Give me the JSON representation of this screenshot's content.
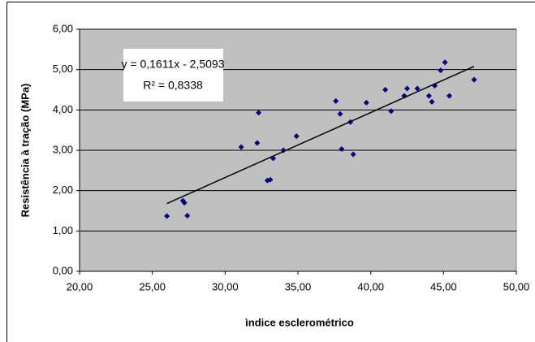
{
  "chart_data": {
    "type": "scatter",
    "x_label": "ìndice esclerométrico",
    "y_label": "Resistência à tração (MPa)",
    "annotations": [
      "y = 0,1611x - 2,5093",
      "R² = 0,8338"
    ],
    "plot_background": "#c0c0c0",
    "grid": true,
    "xlim": [
      20,
      50
    ],
    "xticks": [
      {
        "value": 20,
        "label": "20,00"
      },
      {
        "value": 25,
        "label": "25,00"
      },
      {
        "value": 30,
        "label": "30,00"
      },
      {
        "value": 35,
        "label": "35,00"
      },
      {
        "value": 40,
        "label": "40,00"
      },
      {
        "value": 45,
        "label": "45,00"
      },
      {
        "value": 50,
        "label": "50,00"
      }
    ],
    "ylim": [
      0,
      6
    ],
    "yticks": [
      {
        "value": 0,
        "label": "0,00"
      },
      {
        "value": 1,
        "label": "1,00"
      },
      {
        "value": 2,
        "label": "2,00"
      },
      {
        "value": 3,
        "label": "3,00"
      },
      {
        "value": 4,
        "label": "4,00"
      },
      {
        "value": 5,
        "label": "5,00"
      },
      {
        "value": 6,
        "label": "6,00"
      }
    ],
    "series": [
      {
        "color": "#000080",
        "x": [
          26.0,
          27.1,
          27.2,
          27.4,
          31.1,
          32.2,
          32.3,
          32.9,
          33.1,
          33.3,
          34.0,
          34.9,
          37.6,
          37.9,
          38.0,
          38.6,
          38.8,
          39.7,
          41.0,
          41.4,
          42.3,
          42.5,
          43.2,
          44.0,
          44.2,
          44.4,
          44.8,
          45.1,
          45.4,
          47.1
        ],
        "values": [
          1.37,
          1.75,
          1.7,
          1.38,
          3.08,
          3.18,
          3.93,
          2.25,
          2.27,
          2.8,
          3.0,
          3.35,
          4.22,
          3.9,
          3.03,
          3.7,
          2.9,
          4.18,
          4.5,
          3.97,
          4.35,
          4.53,
          4.53,
          4.35,
          4.2,
          4.6,
          4.98,
          5.18,
          4.35,
          4.75
        ]
      }
    ],
    "trendline": {
      "color": "#000000",
      "x": [
        26.0,
        47.1
      ],
      "values": [
        1.68,
        5.08
      ]
    }
  }
}
